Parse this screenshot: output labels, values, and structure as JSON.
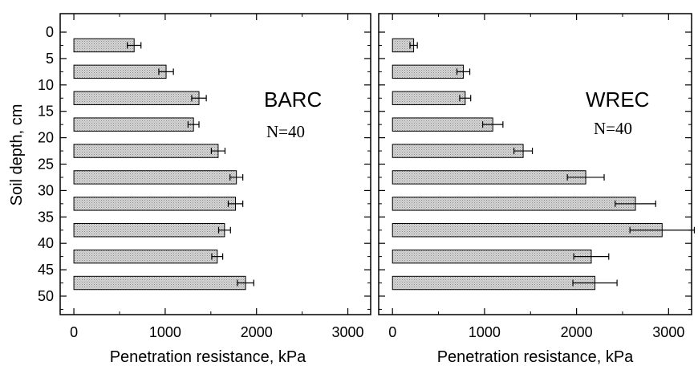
{
  "chart_data": [
    {
      "type": "bar",
      "orientation": "horizontal",
      "panel_label": "BARC",
      "annotation": "N=40",
      "xlabel": "Penetration resistance, kPa",
      "ylabel": "Soil depth, cm",
      "xlim": [
        -150,
        3250
      ],
      "ylim": [
        53.5,
        -3.5
      ],
      "x_ticks": [
        "0",
        "1000",
        "2000",
        "3000"
      ],
      "y_ticks": [
        "0",
        "5",
        "10",
        "15",
        "20",
        "25",
        "30",
        "35",
        "40",
        "45",
        "50"
      ],
      "bar_color": "#c8c8c8",
      "series": [
        {
          "depths": [
            2.5,
            7.5,
            12.5,
            17.5,
            22.5,
            27.5,
            32.5,
            37.5,
            42.5,
            47.5
          ],
          "values": [
            660,
            1010,
            1370,
            1310,
            1580,
            1780,
            1770,
            1650,
            1570,
            1880
          ],
          "errors": [
            75,
            80,
            80,
            60,
            75,
            70,
            80,
            65,
            60,
            90
          ]
        }
      ]
    },
    {
      "type": "bar",
      "orientation": "horizontal",
      "panel_label": "WREC",
      "annotation": "N=40",
      "xlabel": "Penetration resistance, kPa",
      "xlim": [
        -150,
        3250
      ],
      "ylim": [
        53.5,
        -3.5
      ],
      "x_ticks": [
        "0",
        "1000",
        "2000",
        "3000"
      ],
      "bar_color": "#c8c8c8",
      "series": [
        {
          "depths": [
            2.5,
            7.5,
            12.5,
            17.5,
            22.5,
            27.5,
            32.5,
            37.5,
            42.5,
            47.5
          ],
          "values": [
            230,
            770,
            790,
            1090,
            1420,
            2100,
            2640,
            2930,
            2160,
            2200
          ],
          "errors": [
            40,
            70,
            60,
            110,
            100,
            200,
            220,
            350,
            190,
            240
          ]
        }
      ]
    }
  ]
}
